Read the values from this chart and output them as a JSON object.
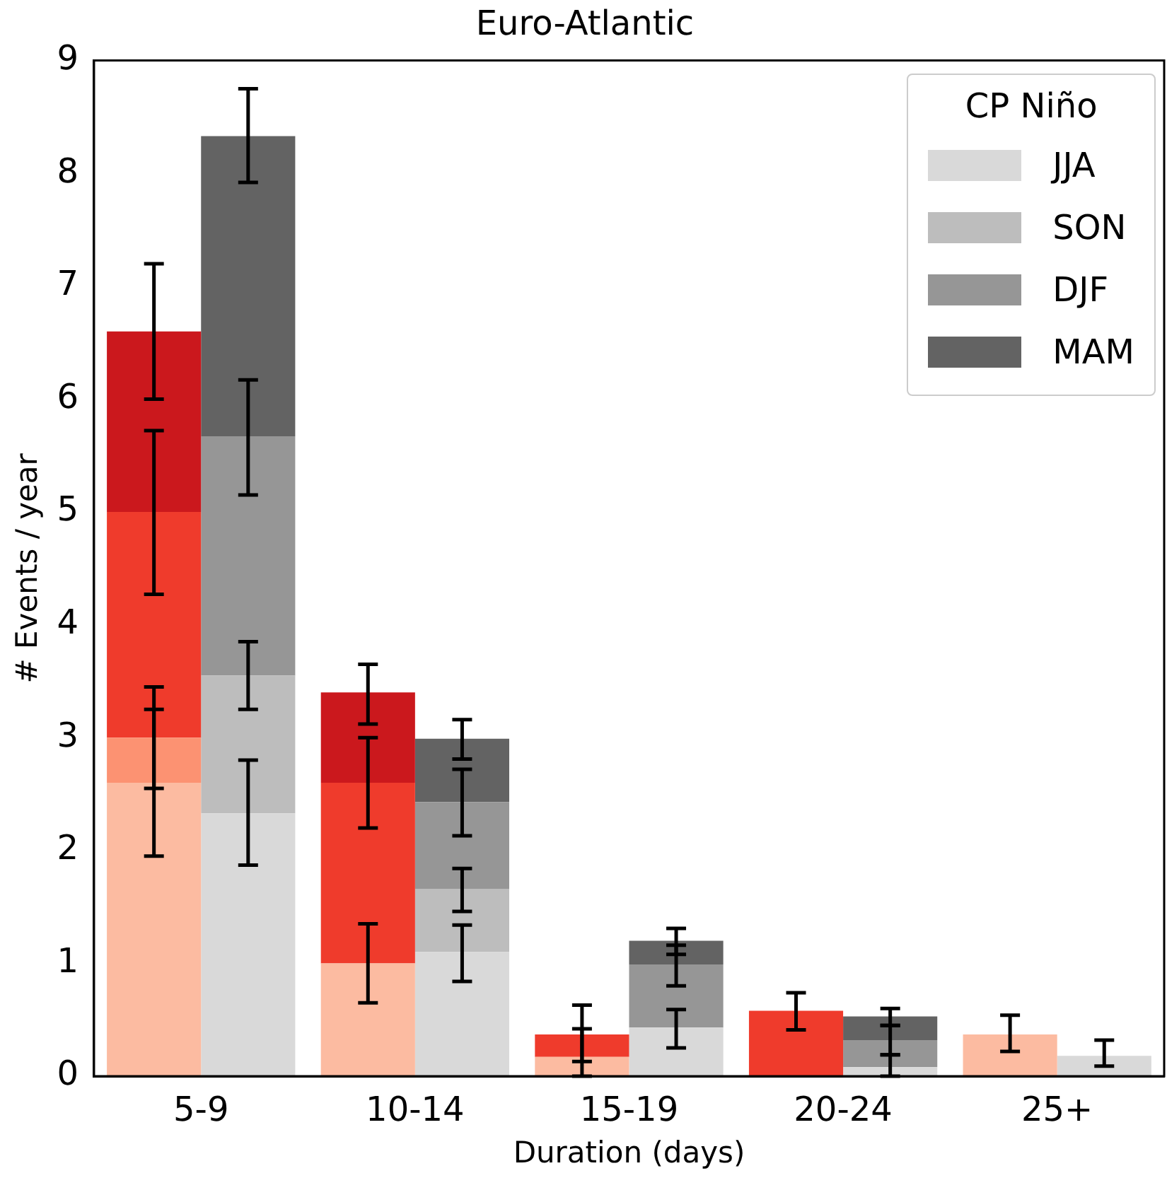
{
  "chart_data": {
    "type": "bar",
    "title": "Euro-Atlantic",
    "xlabel": "Duration (days)",
    "ylabel": "# Events / year",
    "legend_title": "CP Niño",
    "legend": "top right",
    "grid": false,
    "categories": [
      "5-9",
      "10-14",
      "15-19",
      "20-24",
      "25+"
    ],
    "ylim": [
      0,
      9
    ],
    "yticks": [
      0,
      1,
      2,
      3,
      4,
      5,
      6,
      7,
      8,
      9
    ],
    "series": [
      {
        "color": "#fcbba1",
        "values": [
          2.6,
          1.0,
          0.17,
          null,
          0.37
        ],
        "base": [
          0,
          0,
          0,
          null,
          0
        ],
        "errors": [
          [
            1.95,
            3.25
          ],
          [
            0.65,
            1.35
          ],
          [
            0,
            0.42
          ],
          null,
          [
            0.22,
            0.54
          ]
        ]
      },
      {
        "color": "#fc9272",
        "values": [
          0.4,
          null,
          null,
          null,
          null
        ],
        "base": [
          2.6,
          null,
          null,
          null,
          null
        ],
        "errors": [
          [
            2.55,
            3.45
          ],
          null,
          null,
          null,
          null
        ]
      },
      {
        "color": "#ef3b2c",
        "values": [
          2.0,
          1.6,
          0.2,
          0.58,
          null
        ],
        "base": [
          3.0,
          1.0,
          0.17,
          0,
          null
        ],
        "errors": [
          [
            4.27,
            5.72
          ],
          [
            2.2,
            3.0
          ],
          [
            0.13,
            0.63
          ],
          [
            0.41,
            0.74
          ],
          null
        ]
      },
      {
        "color": "#cb181d",
        "values": [
          1.6,
          0.8,
          null,
          null,
          null
        ],
        "base": [
          5.0,
          2.6,
          null,
          null,
          null
        ],
        "errors": [
          [
            6.0,
            7.2
          ],
          [
            3.12,
            3.65
          ],
          null,
          null,
          null
        ]
      },
      {
        "name": "JJA",
        "color": "#d9d9d9",
        "values": [
          2.33,
          1.1,
          0.43,
          0.08,
          0.18
        ],
        "base": [
          0,
          0,
          0,
          0,
          0
        ],
        "errors": [
          [
            1.87,
            2.8
          ],
          [
            0.84,
            1.34
          ],
          [
            0.25,
            0.59
          ],
          [
            0,
            0.19
          ],
          [
            0.09,
            0.32
          ]
        ]
      },
      {
        "name": "SON",
        "color": "#bdbdbd",
        "values": [
          1.22,
          0.56,
          null,
          null,
          null
        ],
        "base": [
          2.33,
          1.1,
          null,
          null,
          null
        ],
        "errors": [
          [
            3.25,
            3.85
          ],
          [
            1.46,
            1.84
          ],
          null,
          null,
          null
        ]
      },
      {
        "name": "DJF",
        "color": "#969696",
        "values": [
          2.12,
          0.77,
          0.56,
          0.24,
          null
        ],
        "base": [
          3.55,
          1.66,
          0.43,
          0.08,
          null
        ],
        "errors": [
          [
            5.15,
            6.17
          ],
          [
            2.13,
            2.72
          ],
          [
            0.8,
            1.16
          ],
          [
            0.19,
            0.45
          ],
          null
        ]
      },
      {
        "name": "MAM",
        "color": "#636363",
        "values": [
          2.66,
          0.56,
          0.21,
          0.21,
          null
        ],
        "base": [
          5.67,
          2.43,
          0.99,
          0.32,
          null
        ],
        "errors": [
          [
            7.92,
            8.75
          ],
          [
            2.81,
            3.16
          ],
          [
            1.08,
            1.31
          ],
          [
            0.45,
            0.6
          ],
          null
        ]
      }
    ]
  }
}
